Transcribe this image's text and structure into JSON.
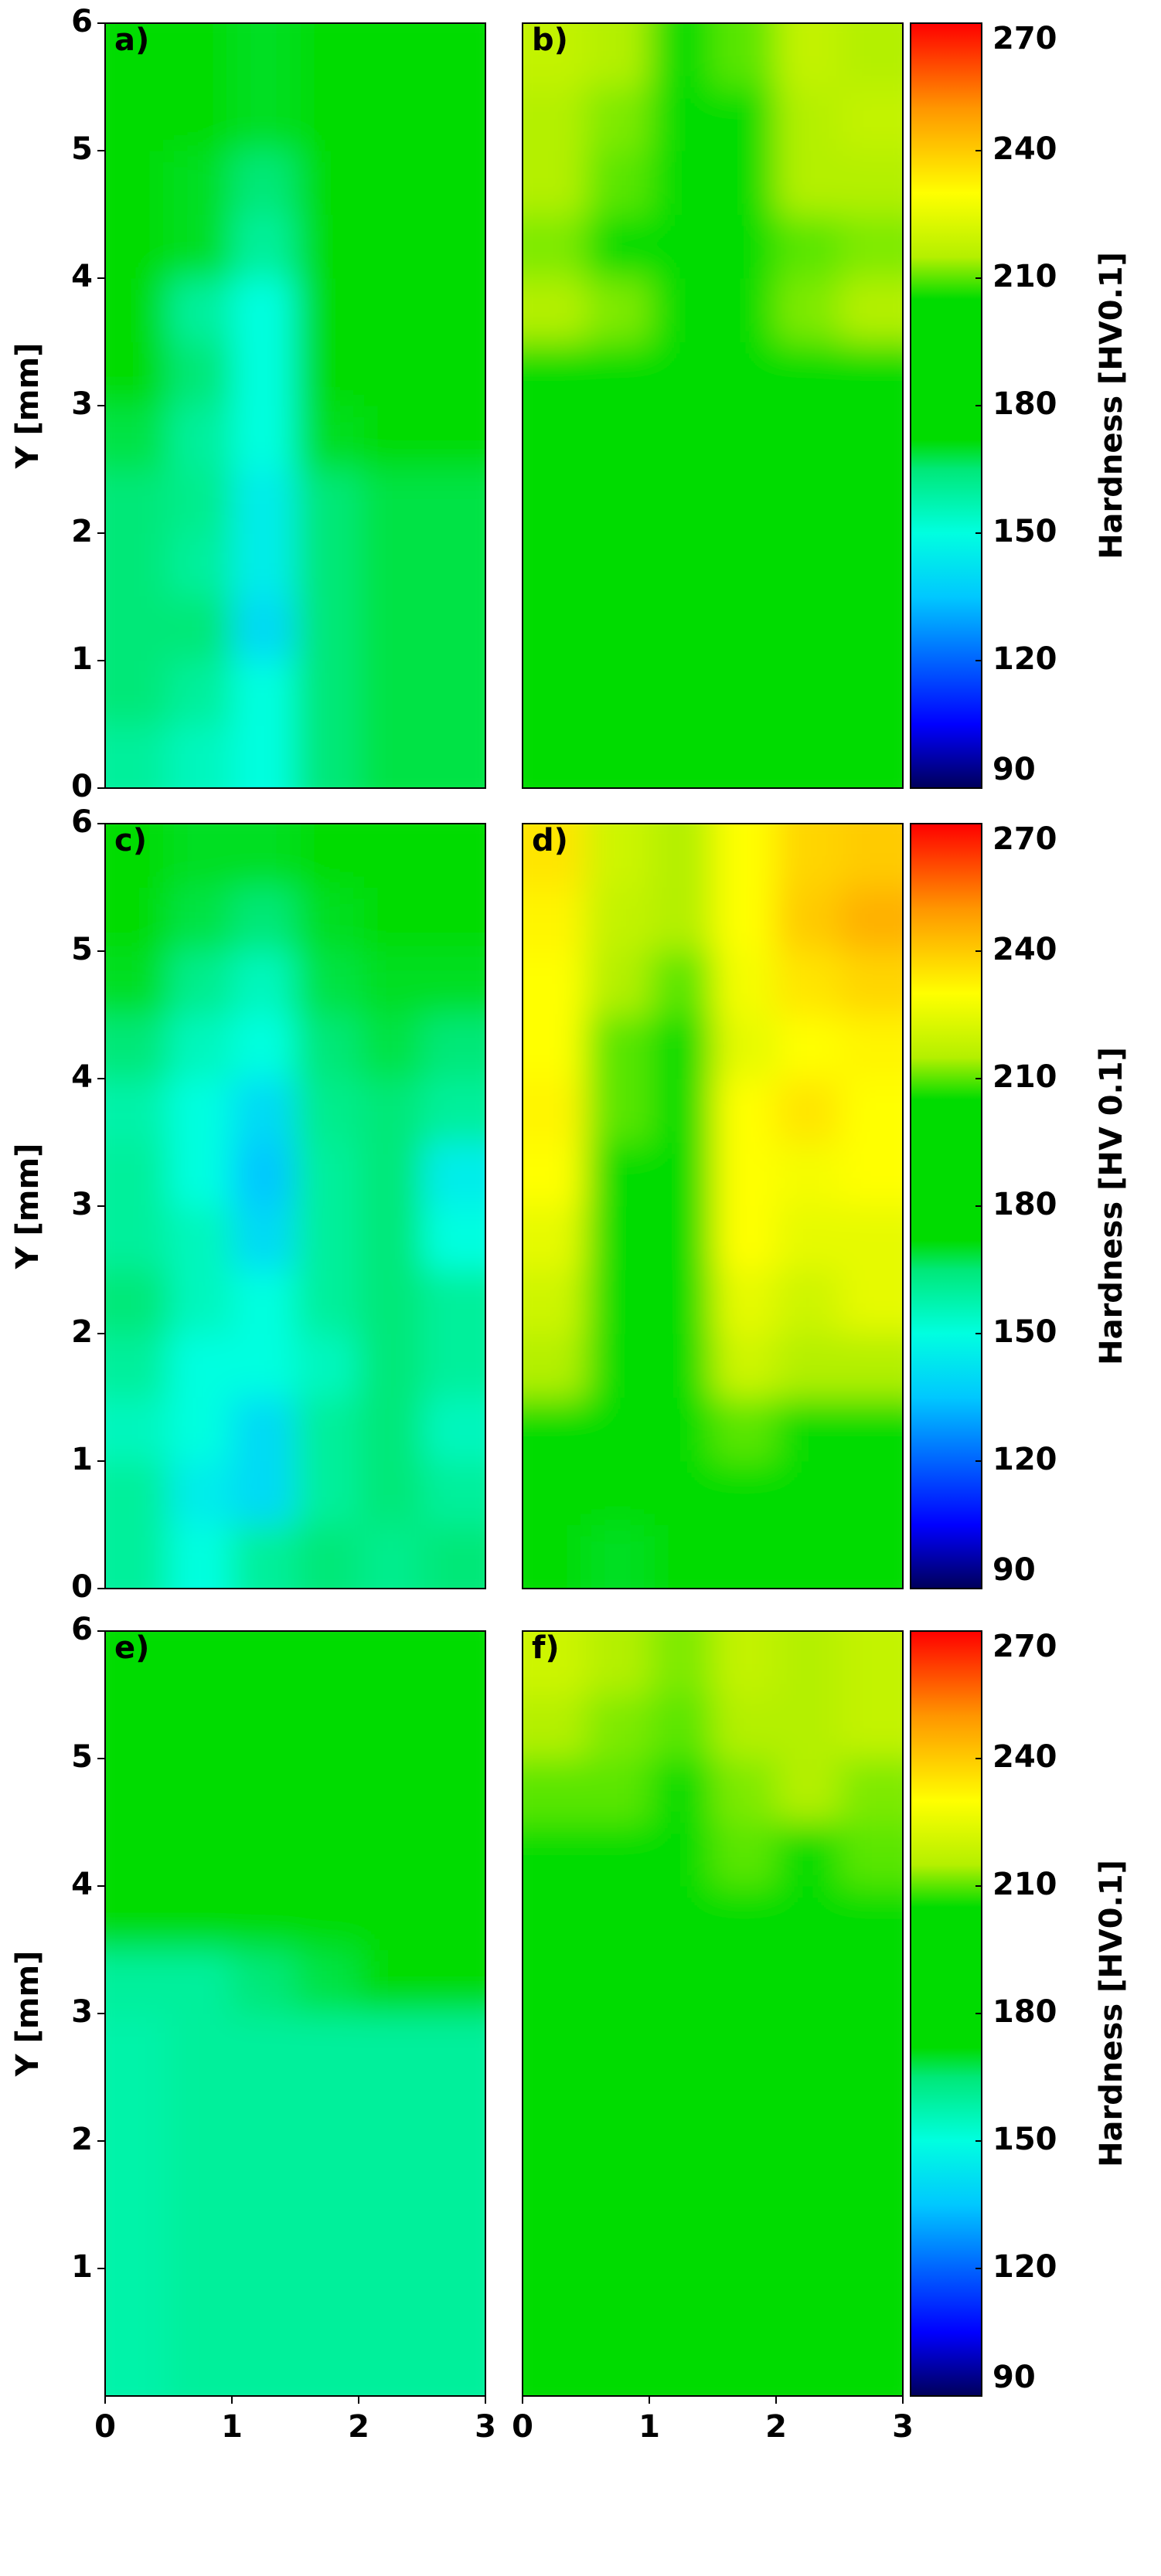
{
  "chart_data": [
    {
      "type": "heatmap",
      "label": "a)",
      "ylabel": "Y [mm]",
      "xlim": [
        0,
        3
      ],
      "ylim": [
        0,
        6
      ],
      "yticks": [
        0,
        1,
        2,
        3,
        4,
        5,
        6
      ],
      "zlim": [
        90,
        270
      ],
      "colorscale": [
        [
          90,
          "#00005a"
        ],
        [
          105,
          "#0000ff"
        ],
        [
          135,
          "#00c8ff"
        ],
        [
          150,
          "#00ffe0"
        ],
        [
          165,
          "#00e878"
        ],
        [
          172,
          "#00dc00"
        ],
        [
          205,
          "#00dc00"
        ],
        [
          215,
          "#b4f000"
        ],
        [
          230,
          "#ffff00"
        ],
        [
          250,
          "#ff9600"
        ],
        [
          270,
          "#ff0000"
        ]
      ],
      "x": [
        0.25,
        0.75,
        1.25,
        1.75,
        2.25,
        2.75
      ],
      "y": [
        0.25,
        0.75,
        1.25,
        1.75,
        2.25,
        2.75,
        3.25,
        3.75,
        4.25,
        4.75,
        5.25,
        5.75
      ],
      "z": [
        [
          160,
          155,
          150,
          165,
          168,
          168
        ],
        [
          165,
          160,
          150,
          165,
          168,
          168
        ],
        [
          165,
          165,
          140,
          165,
          168,
          168
        ],
        [
          165,
          160,
          145,
          165,
          168,
          168
        ],
        [
          165,
          162,
          145,
          165,
          168,
          168
        ],
        [
          168,
          160,
          150,
          170,
          172,
          185
        ],
        [
          188,
          165,
          150,
          190,
          192,
          192
        ],
        [
          190,
          160,
          150,
          190,
          192,
          192
        ],
        [
          190,
          170,
          160,
          190,
          192,
          192
        ],
        [
          190,
          170,
          165,
          190,
          192,
          192
        ],
        [
          190,
          172,
          170,
          190,
          192,
          192
        ],
        [
          190,
          175,
          170,
          190,
          192,
          192
        ]
      ]
    },
    {
      "type": "heatmap",
      "label": "b)",
      "colorbar_label": "Hardness [HV0.1]",
      "zticks": [
        90,
        120,
        150,
        180,
        210,
        240,
        270
      ],
      "xlim": [
        0,
        3
      ],
      "ylim": [
        0,
        6
      ],
      "zlim": [
        90,
        270
      ],
      "colorscale": [
        [
          90,
          "#00005a"
        ],
        [
          105,
          "#0000ff"
        ],
        [
          135,
          "#00c8ff"
        ],
        [
          150,
          "#00ffe0"
        ],
        [
          165,
          "#00e878"
        ],
        [
          172,
          "#00dc00"
        ],
        [
          205,
          "#00dc00"
        ],
        [
          215,
          "#b4f000"
        ],
        [
          230,
          "#ffff00"
        ],
        [
          250,
          "#ff9600"
        ],
        [
          270,
          "#ff0000"
        ]
      ],
      "x": [
        0.25,
        0.75,
        1.25,
        1.75,
        2.25,
        2.75
      ],
      "y": [
        0.25,
        0.75,
        1.25,
        1.75,
        2.25,
        2.75,
        3.25,
        3.75,
        4.25,
        4.75,
        5.25,
        5.75
      ],
      "z": [
        [
          192,
          192,
          192,
          192,
          192,
          192
        ],
        [
          192,
          192,
          192,
          192,
          192,
          192
        ],
        [
          192,
          192,
          192,
          192,
          192,
          192
        ],
        [
          192,
          192,
          192,
          192,
          192,
          192
        ],
        [
          192,
          192,
          192,
          192,
          192,
          192
        ],
        [
          192,
          192,
          192,
          192,
          192,
          192
        ],
        [
          200,
          195,
          195,
          195,
          195,
          200
        ],
        [
          215,
          212,
          200,
          205,
          212,
          215
        ],
        [
          212,
          205,
          195,
          200,
          210,
          212
        ],
        [
          215,
          210,
          195,
          200,
          215,
          215
        ],
        [
          215,
          212,
          200,
          205,
          215,
          218
        ],
        [
          218,
          215,
          205,
          210,
          218,
          215
        ]
      ]
    },
    {
      "type": "heatmap",
      "label": "c)",
      "ylabel": "Y [mm]",
      "xlim": [
        0,
        3
      ],
      "ylim": [
        0,
        6
      ],
      "yticks": [
        0,
        1,
        2,
        3,
        4,
        5,
        6
      ],
      "zlim": [
        90,
        270
      ],
      "colorscale": [
        [
          90,
          "#00005a"
        ],
        [
          105,
          "#0000ff"
        ],
        [
          135,
          "#00c8ff"
        ],
        [
          150,
          "#00ffe0"
        ],
        [
          165,
          "#00e878"
        ],
        [
          172,
          "#00dc00"
        ],
        [
          205,
          "#00dc00"
        ],
        [
          215,
          "#b4f000"
        ],
        [
          230,
          "#ffff00"
        ],
        [
          250,
          "#ff9600"
        ],
        [
          270,
          "#ff0000"
        ]
      ],
      "x": [
        0.25,
        0.75,
        1.25,
        1.75,
        2.25,
        2.75
      ],
      "y": [
        0.25,
        0.75,
        1.25,
        1.75,
        2.25,
        2.75,
        3.25,
        3.75,
        4.25,
        4.75,
        5.25,
        5.75
      ],
      "z": [
        [
          160,
          150,
          160,
          165,
          162,
          165
        ],
        [
          160,
          145,
          140,
          160,
          165,
          160
        ],
        [
          155,
          150,
          140,
          160,
          165,
          155
        ],
        [
          160,
          150,
          150,
          155,
          165,
          160
        ],
        [
          165,
          155,
          150,
          160,
          165,
          160
        ],
        [
          160,
          155,
          140,
          160,
          165,
          150
        ],
        [
          160,
          150,
          135,
          160,
          165,
          145
        ],
        [
          158,
          150,
          140,
          162,
          165,
          160
        ],
        [
          165,
          155,
          150,
          165,
          168,
          165
        ],
        [
          170,
          162,
          155,
          168,
          170,
          170
        ],
        [
          175,
          168,
          165,
          170,
          175,
          175
        ],
        [
          175,
          170,
          170,
          175,
          175,
          178
        ]
      ]
    },
    {
      "type": "heatmap",
      "label": "d)",
      "colorbar_label": "Hardness [HV 0.1]",
      "zticks": [
        90,
        120,
        150,
        180,
        210,
        240,
        270
      ],
      "xlim": [
        0,
        3
      ],
      "ylim": [
        0,
        6
      ],
      "zlim": [
        90,
        270
      ],
      "colorscale": [
        [
          90,
          "#00005a"
        ],
        [
          105,
          "#0000ff"
        ],
        [
          135,
          "#00c8ff"
        ],
        [
          150,
          "#00ffe0"
        ],
        [
          165,
          "#00e878"
        ],
        [
          172,
          "#00dc00"
        ],
        [
          205,
          "#00dc00"
        ],
        [
          215,
          "#b4f000"
        ],
        [
          230,
          "#ffff00"
        ],
        [
          250,
          "#ff9600"
        ],
        [
          270,
          "#ff0000"
        ]
      ],
      "x": [
        0.25,
        0.75,
        1.25,
        1.75,
        2.25,
        2.75
      ],
      "y": [
        0.25,
        0.75,
        1.25,
        1.75,
        2.25,
        2.75,
        3.25,
        3.75,
        4.25,
        4.75,
        5.25,
        5.75
      ],
      "z": [
        [
          190,
          170,
          190,
          200,
          200,
          200
        ],
        [
          195,
          175,
          190,
          205,
          200,
          200
        ],
        [
          205,
          185,
          195,
          210,
          205,
          205
        ],
        [
          215,
          195,
          195,
          220,
          215,
          215
        ],
        [
          220,
          195,
          195,
          225,
          220,
          225
        ],
        [
          225,
          200,
          200,
          230,
          225,
          225
        ],
        [
          230,
          205,
          200,
          230,
          228,
          230
        ],
        [
          232,
          210,
          205,
          230,
          235,
          230
        ],
        [
          230,
          210,
          205,
          225,
          230,
          232
        ],
        [
          230,
          215,
          210,
          228,
          235,
          238
        ],
        [
          232,
          218,
          215,
          230,
          240,
          245
        ],
        [
          235,
          220,
          215,
          230,
          238,
          240
        ]
      ]
    },
    {
      "type": "heatmap",
      "label": "e)",
      "ylabel": "Y [mm]",
      "xlim": [
        0,
        3
      ],
      "ylim": [
        0,
        6
      ],
      "xticks": [
        0,
        1,
        2,
        3
      ],
      "yticks": [
        1,
        2,
        3,
        4,
        5,
        6
      ],
      "zlim": [
        90,
        270
      ],
      "colorscale": [
        [
          90,
          "#00005a"
        ],
        [
          105,
          "#0000ff"
        ],
        [
          135,
          "#00c8ff"
        ],
        [
          150,
          "#00ffe0"
        ],
        [
          165,
          "#00e878"
        ],
        [
          172,
          "#00dc00"
        ],
        [
          205,
          "#00dc00"
        ],
        [
          215,
          "#b4f000"
        ],
        [
          230,
          "#ffff00"
        ],
        [
          250,
          "#ff9600"
        ],
        [
          270,
          "#ff0000"
        ]
      ],
      "x": [
        0.25,
        0.75,
        1.25,
        1.75,
        2.25,
        2.75
      ],
      "y": [
        0.25,
        0.75,
        1.25,
        1.75,
        2.25,
        2.75,
        3.25,
        3.75,
        4.25,
        4.75,
        5.25,
        5.75
      ],
      "z": [
        [
          158,
          160,
          160,
          160,
          160,
          160
        ],
        [
          158,
          160,
          160,
          160,
          160,
          160
        ],
        [
          158,
          160,
          160,
          160,
          160,
          160
        ],
        [
          158,
          160,
          160,
          160,
          160,
          160
        ],
        [
          158,
          160,
          160,
          160,
          160,
          160
        ],
        [
          158,
          160,
          160,
          160,
          160,
          160
        ],
        [
          160,
          160,
          165,
          168,
          175,
          180
        ],
        [
          180,
          185,
          185,
          185,
          185,
          188
        ],
        [
          185,
          185,
          188,
          188,
          188,
          188
        ],
        [
          188,
          188,
          190,
          190,
          190,
          190
        ],
        [
          190,
          190,
          190,
          190,
          190,
          190
        ],
        [
          190,
          190,
          190,
          190,
          190,
          190
        ]
      ]
    },
    {
      "type": "heatmap",
      "label": "f)",
      "colorbar_label": "Hardness [HV0.1]",
      "zticks": [
        90,
        120,
        150,
        180,
        210,
        240,
        270
      ],
      "xlim": [
        0,
        3
      ],
      "ylim": [
        0,
        6
      ],
      "xticks": [
        0,
        1,
        2,
        3
      ],
      "zlim": [
        90,
        270
      ],
      "colorscale": [
        [
          90,
          "#00005a"
        ],
        [
          105,
          "#0000ff"
        ],
        [
          135,
          "#00c8ff"
        ],
        [
          150,
          "#00ffe0"
        ],
        [
          165,
          "#00e878"
        ],
        [
          172,
          "#00dc00"
        ],
        [
          205,
          "#00dc00"
        ],
        [
          215,
          "#b4f000"
        ],
        [
          230,
          "#ffff00"
        ],
        [
          250,
          "#ff9600"
        ],
        [
          270,
          "#ff0000"
        ]
      ],
      "x": [
        0.25,
        0.75,
        1.25,
        1.75,
        2.25,
        2.75
      ],
      "y": [
        0.25,
        0.75,
        1.25,
        1.75,
        2.25,
        2.75,
        3.25,
        3.75,
        4.25,
        4.75,
        5.25,
        5.75
      ],
      "z": [
        [
          192,
          192,
          192,
          192,
          192,
          192
        ],
        [
          192,
          192,
          192,
          192,
          192,
          192
        ],
        [
          192,
          192,
          192,
          192,
          192,
          192
        ],
        [
          192,
          192,
          192,
          192,
          192,
          192
        ],
        [
          192,
          192,
          192,
          192,
          192,
          192
        ],
        [
          192,
          192,
          192,
          192,
          192,
          192
        ],
        [
          192,
          192,
          192,
          192,
          192,
          192
        ],
        [
          200,
          200,
          195,
          200,
          200,
          205
        ],
        [
          205,
          205,
          200,
          210,
          205,
          210
        ],
        [
          210,
          210,
          205,
          212,
          215,
          212
        ],
        [
          215,
          212,
          210,
          215,
          215,
          218
        ],
        [
          220,
          215,
          212,
          218,
          215,
          218
        ]
      ]
    }
  ]
}
